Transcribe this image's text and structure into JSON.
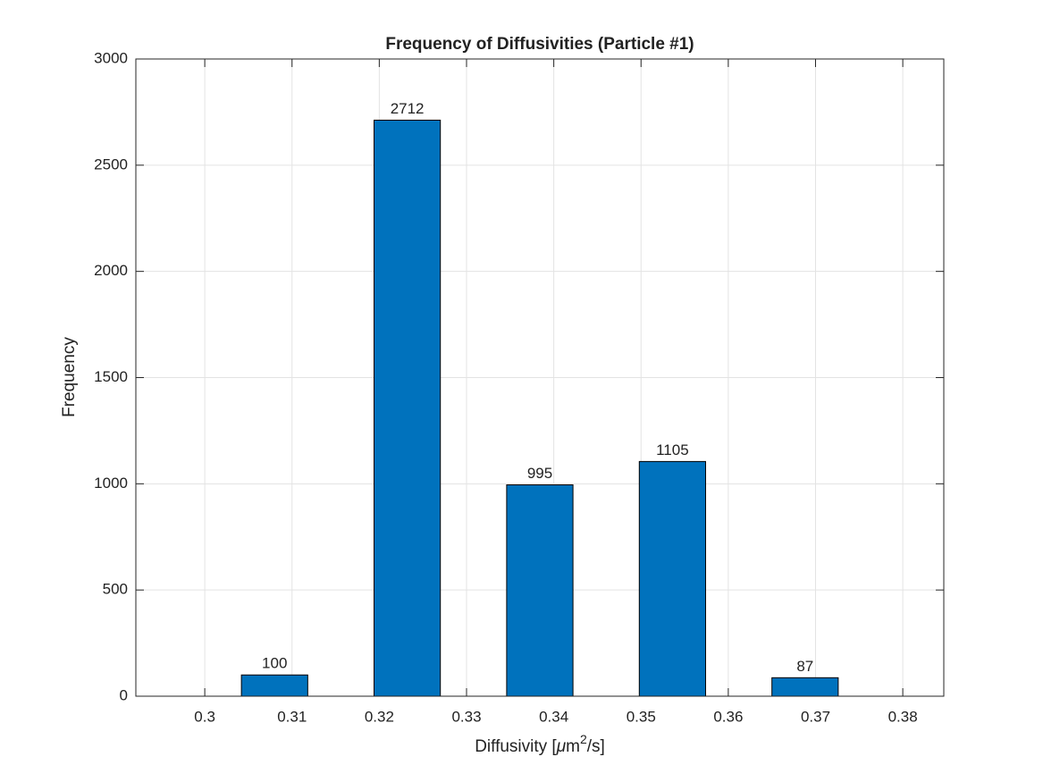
{
  "chart_data": {
    "type": "bar",
    "title": "Frequency of Diffusivities (Particle #1)",
    "xlabel": [
      "Diffusivity [",
      "μ",
      "m",
      "2",
      "/s]"
    ],
    "ylabel": "Frequency",
    "x": [
      0.308,
      0.3232,
      0.3384,
      0.3536,
      0.3688
    ],
    "values": [
      100,
      2712,
      995,
      1105,
      87
    ],
    "color": "#0072bd",
    "xlim": [
      0.2921,
      0.3847
    ],
    "xticks": [
      0.3,
      0.31,
      0.32,
      0.33,
      0.34,
      0.35,
      0.36,
      0.37,
      0.38
    ],
    "ylim": [
      0,
      3000
    ],
    "yticks": [
      0,
      500,
      1000,
      1500,
      2000,
      2500,
      3000
    ],
    "grid": true
  }
}
